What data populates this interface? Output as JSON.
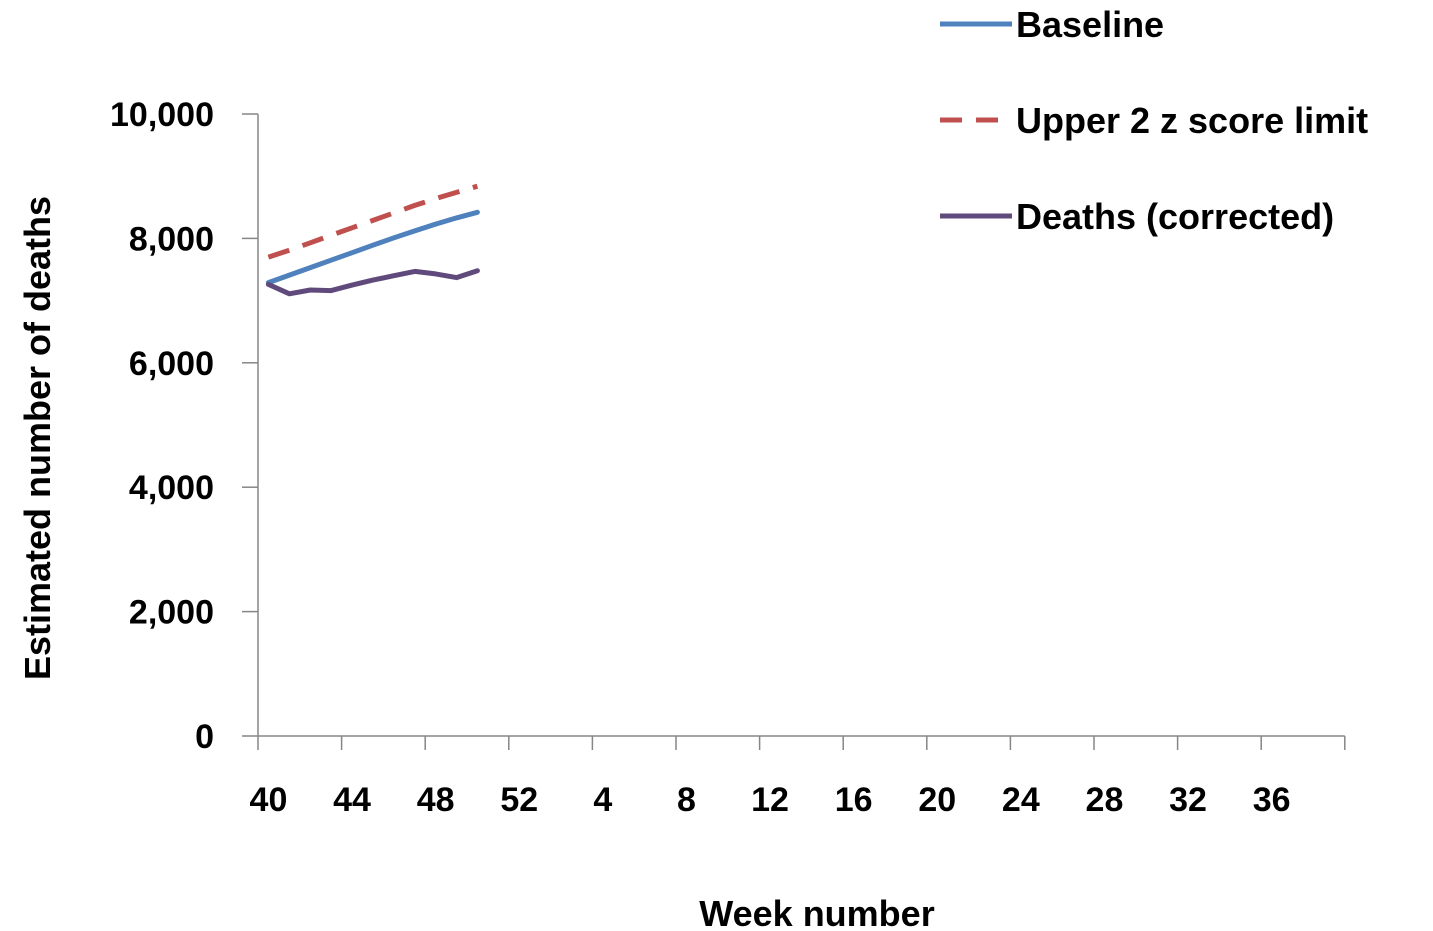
{
  "chart_data": {
    "type": "line",
    "title": "",
    "xlabel": "Week number",
    "ylabel": "Estimated number of deaths",
    "ylim": [
      0,
      10000
    ],
    "y_ticks": [
      "0",
      "2,000",
      "4,000",
      "6,000",
      "8,000",
      "10,000"
    ],
    "y_tick_values": [
      0,
      2000,
      4000,
      6000,
      8000,
      10000
    ],
    "x_weeks": [
      40,
      41,
      42,
      43,
      44,
      45,
      46,
      47,
      48,
      49,
      50,
      51,
      52,
      1,
      2,
      3,
      4,
      5,
      6,
      7,
      8,
      9,
      10,
      11,
      12,
      13,
      14,
      15,
      16,
      17,
      18,
      19,
      20,
      21,
      22,
      23,
      24,
      25,
      26,
      27,
      28,
      29,
      30,
      31,
      32,
      33,
      34,
      35,
      36,
      37,
      38,
      39
    ],
    "x_tick_labels": [
      "40",
      "44",
      "48",
      "52",
      "4",
      "8",
      "12",
      "16",
      "20",
      "24",
      "28",
      "32",
      "36"
    ],
    "grid": false,
    "legend_position": "top-right",
    "series": [
      {
        "name": "Baseline",
        "color": "#4f81bd",
        "dash": false,
        "x": [
          40,
          41,
          42,
          43,
          44,
          45,
          46,
          47,
          48,
          49,
          50
        ],
        "values": [
          7290,
          7410,
          7530,
          7650,
          7770,
          7890,
          8010,
          8120,
          8230,
          8330,
          8420
        ]
      },
      {
        "name": "Upper 2 z score limit",
        "color": "#c0504d",
        "dash": true,
        "x": [
          40,
          41,
          42,
          43,
          44,
          45,
          46,
          47,
          48,
          49,
          50
        ],
        "values": [
          7700,
          7810,
          7930,
          8050,
          8170,
          8290,
          8410,
          8530,
          8640,
          8740,
          8840
        ]
      },
      {
        "name": "Deaths (corrected)",
        "color": "#604a7b",
        "dash": false,
        "x": [
          40,
          41,
          42,
          43,
          44,
          45,
          46,
          47,
          48,
          49,
          50
        ],
        "values": [
          7260,
          7110,
          7170,
          7160,
          7250,
          7330,
          7400,
          7470,
          7430,
          7370,
          7480
        ]
      }
    ]
  }
}
